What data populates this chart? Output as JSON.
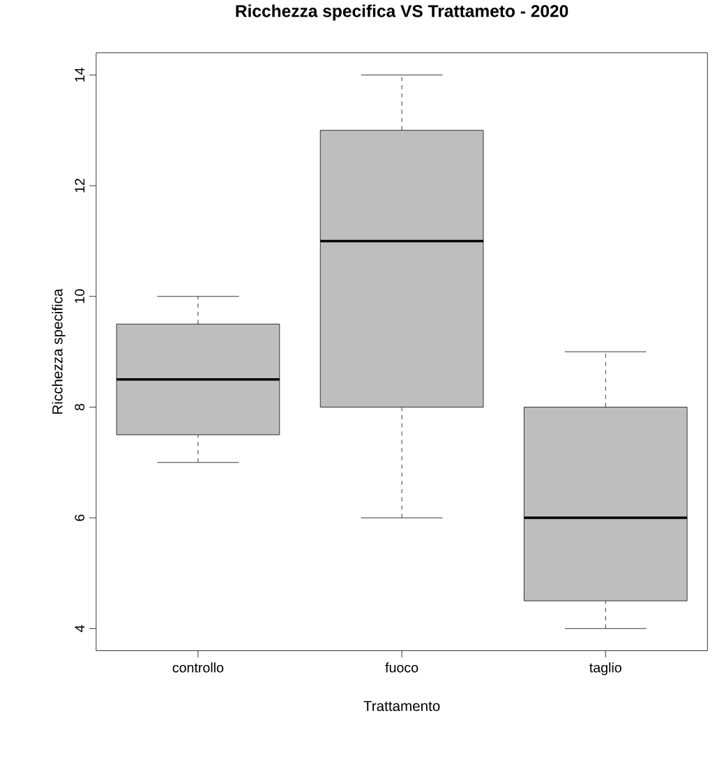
{
  "chart_data": {
    "type": "box",
    "title": "Ricchezza specifica VS Trattameto - 2020",
    "xlabel": "Trattamento",
    "ylabel": "Ricchezza specifica",
    "categories": [
      "controllo",
      "fuoco",
      "taglio"
    ],
    "series": [
      {
        "color": "#bebebe",
        "boxes": [
          {
            "low": 7,
            "q1": 7.5,
            "median": 8.5,
            "q3": 9.5,
            "high": 10
          },
          {
            "low": 6,
            "q1": 8,
            "median": 11,
            "q3": 13,
            "high": 14
          },
          {
            "low": 4,
            "q1": 4.5,
            "median": 6,
            "q3": 8,
            "high": 9
          }
        ]
      }
    ],
    "ylim": [
      3.6,
      14.4
    ],
    "yticks": [
      4,
      6,
      8,
      10,
      12,
      14
    ]
  }
}
